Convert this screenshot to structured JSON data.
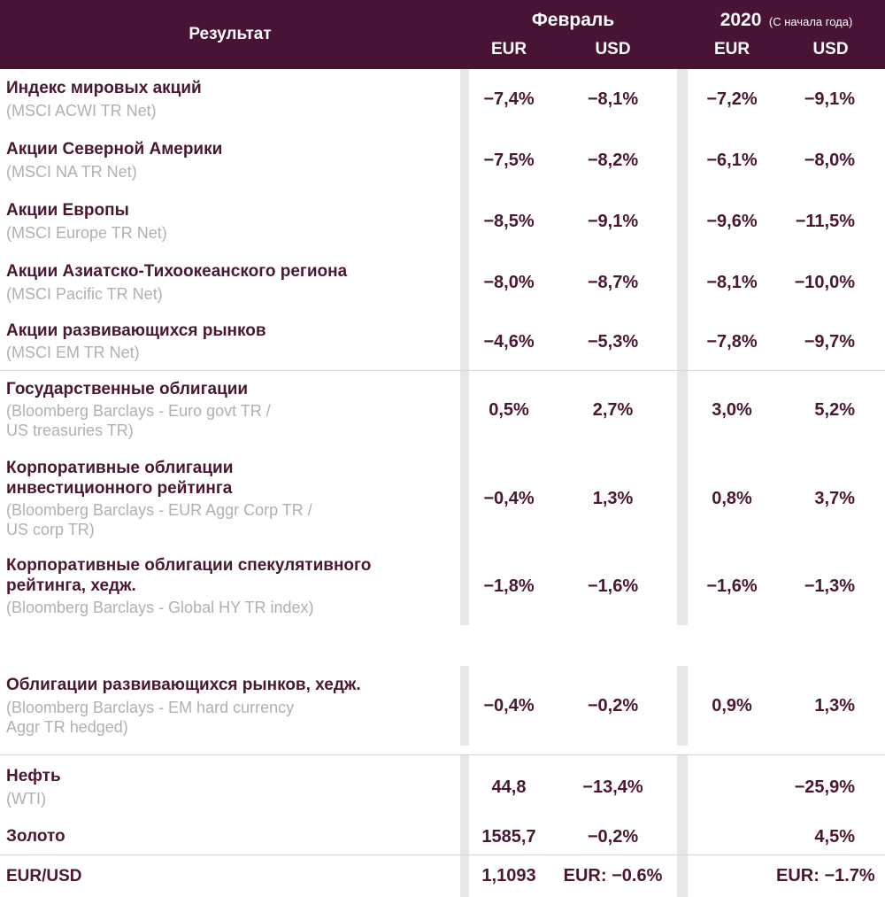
{
  "colors": {
    "header_bg": "#481334",
    "text_primary": "#4a1733",
    "text_secondary": "#b1b0b0",
    "gutter_bar": "#e8e7e7",
    "divider_line": "#d6d6d6"
  },
  "header": {
    "result": "Результат",
    "february": "Февраль",
    "year": "2020",
    "year_note": "(С начала года)",
    "subcolumns": {
      "feb_eur": "EUR",
      "feb_usd": "USD",
      "ytd_eur": "EUR",
      "ytd_usd": "USD"
    }
  },
  "rows": [
    {
      "name": "Индекс мировых акций",
      "sub": "(MSCI ACWI TR Net)",
      "feb_eur": "−7,4%",
      "feb_usd": "−8,1%",
      "ytd_eur": "−7,2%",
      "ytd_usd": "−9,1%"
    },
    {
      "name": "Акции Северной Америки",
      "sub": "(MSCI NA TR Net)",
      "feb_eur": "−7,5%",
      "feb_usd": "−8,2%",
      "ytd_eur": "−6,1%",
      "ytd_usd": "−8,0%"
    },
    {
      "name": "Акции Европы",
      "sub": "(MSCI Europe TR Net)",
      "feb_eur": "−8,5%",
      "feb_usd": "−9,1%",
      "ytd_eur": "−9,6%",
      "ytd_usd": "−11,5%"
    },
    {
      "name": "Акции Азиатско-Тихоокеанского региона",
      "sub": "(MSCI Pacific TR Net)",
      "feb_eur": "−8,0%",
      "feb_usd": "−8,7%",
      "ytd_eur": "−8,1%",
      "ytd_usd": "−10,0%"
    },
    {
      "name": "Акции развивающихся рынков",
      "sub": "(MSCI EM TR Net)",
      "feb_eur": "−4,6%",
      "feb_usd": "−5,3%",
      "ytd_eur": "−7,8%",
      "ytd_usd": "−9,7%"
    },
    {
      "name": "Государственные облигации",
      "sub": "(Bloomberg Barclays - Euro govt TR /\nUS treasuries TR)",
      "feb_eur": "0,5%",
      "feb_usd": "2,7%",
      "ytd_eur": "3,0%",
      "ytd_usd": "5,2%"
    },
    {
      "name": "Корпоративные облигации\nинвестиционного рейтинга",
      "sub": "(Bloomberg Barclays - EUR Aggr Corp TR /\nUS corp TR)",
      "feb_eur": "−0,4%",
      "feb_usd": "1,3%",
      "ytd_eur": "0,8%",
      "ytd_usd": "3,7%"
    },
    {
      "name": "Корпоративные облигации спекулятивного\nрейтинга, хедж.",
      "sub": "(Bloomberg Barclays - Global HY TR index)",
      "feb_eur": "−1,8%",
      "feb_usd": "−1,6%",
      "ytd_eur": "−1,6%",
      "ytd_usd": "−1,3%"
    },
    {
      "name": "Облигации развивающихся рынков, хедж.",
      "sub": "(Bloomberg Barclays - EM hard currency\nAggr TR hedged)",
      "feb_eur": "−0,4%",
      "feb_usd": "−0,2%",
      "ytd_eur": "0,9%",
      "ytd_usd": "1,3%"
    },
    {
      "name": "Нефть",
      "sub": "(WTI)",
      "feb_eur": "44,8",
      "feb_usd": "−13,4%",
      "ytd_eur": "",
      "ytd_usd": "−25,9%"
    },
    {
      "name": "Золото",
      "sub": "",
      "feb_eur": "1585,7",
      "feb_usd": "−0,2%",
      "ytd_eur": "",
      "ytd_usd": "4,5%"
    },
    {
      "name": "EUR/USD",
      "sub": "",
      "feb_eur": "1,1093",
      "feb_usd": "EUR: −0.6%",
      "ytd_eur": "",
      "ytd_usd": "EUR: −1.7%"
    }
  ]
}
